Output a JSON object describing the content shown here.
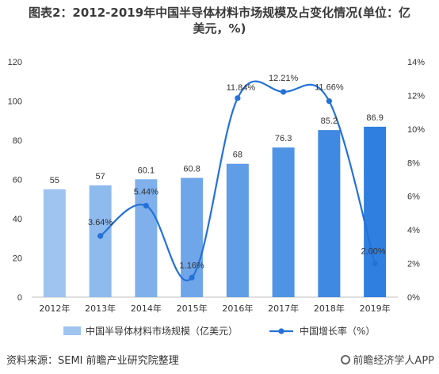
{
  "title_line1": "图表2：2012-2019年中国半导体材料市场规模及占变化情况(单位：亿",
  "title_line2": "美元，%)",
  "source": "资料来源：SEMI 前瞻产业研究院整理",
  "brand": "前瞻经济学人APP",
  "colors": {
    "bar_start": "#9fc4f0",
    "bar_end": "#2f7fe0",
    "line": "#2471d9",
    "axis": "#bfbfbf",
    "text": "#333333"
  },
  "icons": [
    "brand-logo-icon"
  ],
  "chart_data": {
    "type": "bar",
    "categories": [
      "2012年",
      "2013年",
      "2014年",
      "2015年",
      "2016年",
      "2017年",
      "2018年",
      "2019年"
    ],
    "series": [
      {
        "name": "中国半导体材料市场规模（亿美元）",
        "type": "bar",
        "axis": "left",
        "values": [
          55,
          57,
          60.1,
          60.8,
          68,
          76.3,
          85.2,
          86.9
        ],
        "labels": [
          "55",
          "57",
          "60.1",
          "60.8",
          "68",
          "76.3",
          "85.2",
          "86.9"
        ]
      },
      {
        "name": "中国增长率（%）",
        "type": "line",
        "axis": "right",
        "values": [
          null,
          3.64,
          5.44,
          1.16,
          11.84,
          12.21,
          11.66,
          2.0
        ],
        "labels": [
          "",
          "3.64%",
          "5.44%",
          "1.16%",
          "11.84%",
          "12.21%",
          "11.66%",
          "2.00%"
        ]
      }
    ],
    "y_left": {
      "min": 0,
      "max": 120,
      "ticks": [
        "0",
        "20",
        "40",
        "60",
        "80",
        "100",
        "120"
      ]
    },
    "y_right": {
      "min": 0,
      "max": 14,
      "ticks": [
        "0%",
        "2%",
        "4%",
        "6%",
        "8%",
        "10%",
        "12%",
        "14%"
      ]
    },
    "grid": false,
    "legend": "bottom"
  }
}
